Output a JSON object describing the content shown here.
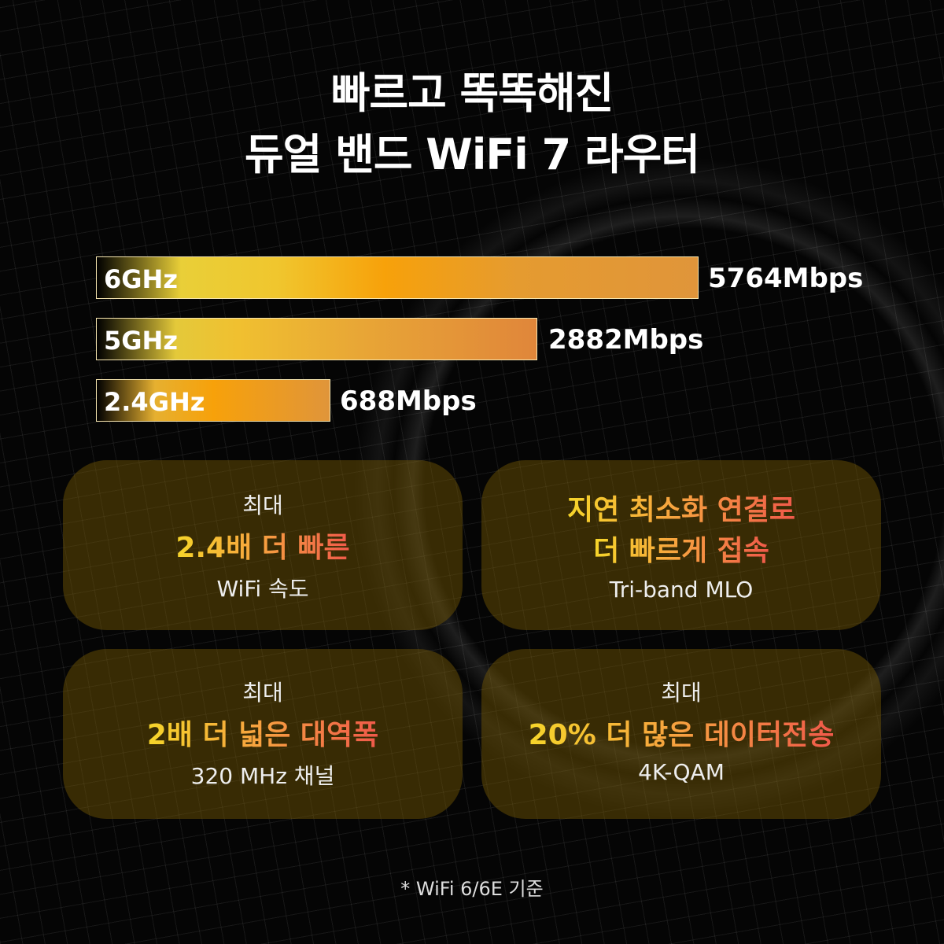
{
  "title": {
    "line1": "빠르고 똑똑해진",
    "line2": "듀얼 밴드 WiFi 7 라우터"
  },
  "chart_data": {
    "type": "bar",
    "orientation": "horizontal",
    "categories": [
      "6GHz",
      "5GHz",
      "2.4GHz"
    ],
    "values": [
      5764,
      2882,
      688
    ],
    "value_labels": [
      "5764Mbps",
      "2882Mbps",
      "688Mbps"
    ],
    "unit": "Mbps",
    "colors": {
      "start": "#f2d435",
      "mid": "#f7a10a",
      "end": "#e0953a"
    }
  },
  "cards": [
    {
      "top": "최대",
      "highlight": "2.4배 더 빠른",
      "bottom": "WiFi 속도"
    },
    {
      "highlight": "지연 최소화 연결로",
      "highlight2": "더 빠르게 접속",
      "bottom": "Tri-band MLO"
    },
    {
      "top": "최대",
      "highlight": "2배 더 넓은 대역폭",
      "bottom": "320 MHz 채널"
    },
    {
      "top": "최대",
      "highlight": "20% 더 많은 데이터전송",
      "bottom": "4K-QAM"
    }
  ],
  "footnote": "* WiFi 6/6E 기준"
}
